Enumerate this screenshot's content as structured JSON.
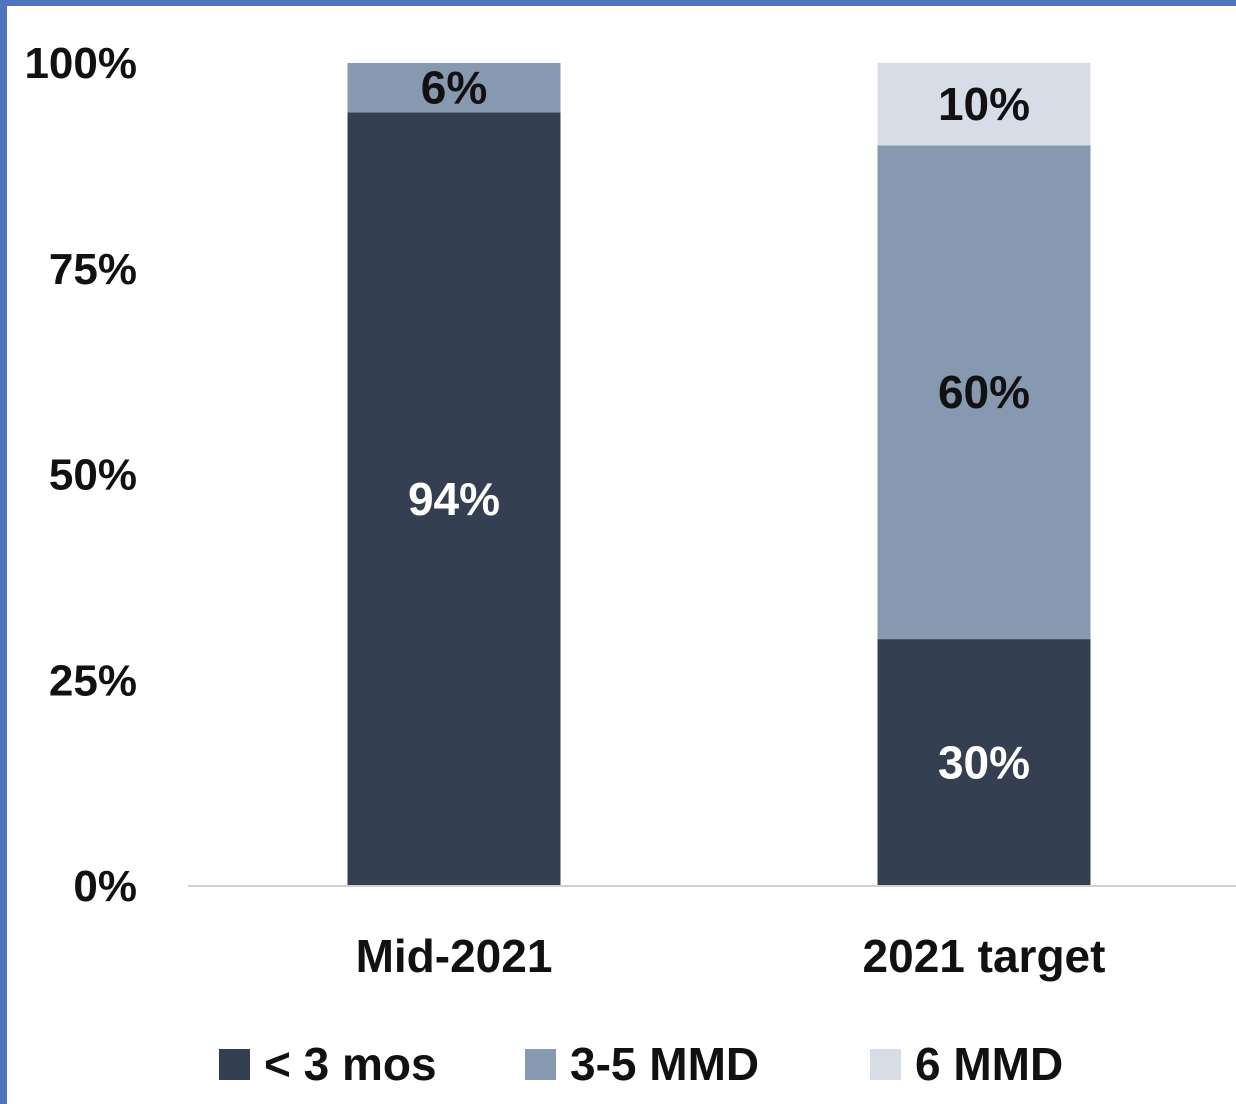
{
  "chart_data": {
    "type": "bar",
    "stacked": true,
    "categories": [
      "Mid-2021",
      "2021 target"
    ],
    "series": [
      {
        "name": "< 3 mos",
        "values": [
          94,
          30
        ],
        "color": "#343f51",
        "label_color": "#ffffff"
      },
      {
        "name": "3-5 MMD",
        "values": [
          6,
          60
        ],
        "color": "#8699b1",
        "label_color": "#111111"
      },
      {
        "name": "6 MMD",
        "values": [
          0,
          10
        ],
        "color": "#d7dde6",
        "label_color": "#111111"
      }
    ],
    "data_labels": [
      [
        "94%",
        "30%"
      ],
      [
        "6%",
        "60%"
      ],
      [
        "",
        "10%"
      ]
    ],
    "ylim": [
      0,
      100
    ],
    "y_ticks": [
      0,
      25,
      50,
      75,
      100
    ],
    "y_tick_labels": [
      "0%",
      "25%",
      "50%",
      "75%",
      "100%"
    ],
    "legend": "bottom",
    "grid": false,
    "frame_color": "#4f75c0",
    "axis_color": "#d0d0d0"
  }
}
